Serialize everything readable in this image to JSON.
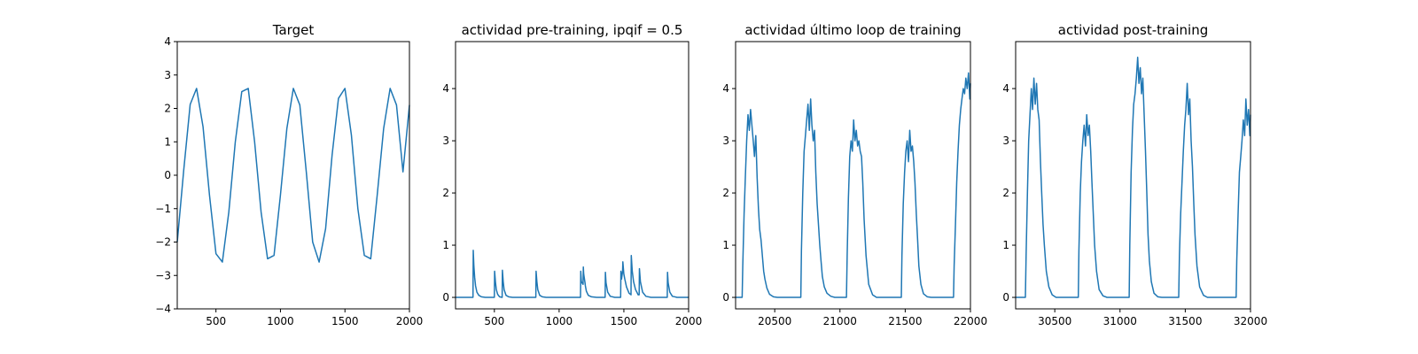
{
  "chart_data": [
    {
      "type": "line",
      "title": "Target",
      "xlabel": "",
      "ylabel": "",
      "xlim": [
        200,
        2000
      ],
      "ylim": [
        -4,
        4
      ],
      "xticks": [
        500,
        1000,
        1500,
        2000
      ],
      "xtick_labels": [
        "500",
        "1000",
        "1500",
        "2000"
      ],
      "yticks": [
        -4,
        -3,
        -2,
        -1,
        0,
        1,
        2,
        3,
        4
      ],
      "ytick_labels": [
        "−4",
        "−3",
        "−2",
        "−1",
        "0",
        "1",
        "2",
        "3",
        "4"
      ],
      "grid": false,
      "color": "#1f77b4",
      "series": [
        {
          "x": [
            200,
            250,
            300,
            350,
            400,
            450,
            500,
            550,
            600,
            650,
            700,
            750,
            800,
            850,
            900,
            950,
            1000,
            1050,
            1100,
            1150,
            1200,
            1250,
            1300,
            1350,
            1400,
            1450,
            1500,
            1550,
            1600,
            1650,
            1700,
            1750,
            1800,
            1850,
            1900,
            1950,
            2000
          ],
          "y": [
            -2.0,
            0.15,
            2.12,
            2.6,
            1.45,
            -0.6,
            -2.35,
            -2.6,
            -1.1,
            1.0,
            2.5,
            2.6,
            1.0,
            -1.1,
            -2.5,
            -2.4,
            -0.6,
            1.4,
            2.6,
            2.1,
            0.1,
            -2.0,
            -2.6,
            -1.6,
            0.6,
            2.3,
            2.6,
            1.2,
            -1.0,
            -2.4,
            -2.5,
            -0.6,
            1.4,
            2.6,
            2.1,
            0.1,
            2.1
          ]
        }
      ]
    },
    {
      "type": "line",
      "title": "actividad pre-training, ipqif = 0.5",
      "xlabel": "",
      "ylabel": "",
      "xlim": [
        200,
        2000
      ],
      "ylim": [
        -0.22,
        4.9
      ],
      "xticks": [
        500,
        1000,
        1500,
        2000
      ],
      "xtick_labels": [
        "500",
        "1000",
        "1500",
        "2000"
      ],
      "yticks": [
        0,
        1,
        2,
        3,
        4
      ],
      "ytick_labels": [
        "0",
        "1",
        "2",
        "3",
        "4"
      ],
      "grid": false,
      "color": "#1f77b4",
      "series": [
        {
          "x": [
            200,
            335,
            337,
            342,
            348,
            355,
            365,
            380,
            400,
            430,
            500,
            502,
            508,
            515,
            525,
            540,
            560,
            562,
            568,
            575,
            590,
            610,
            640,
            820,
            822,
            828,
            835,
            850,
            870,
            900,
            1165,
            1167,
            1172,
            1185,
            1187,
            1190,
            1200,
            1203,
            1210,
            1225,
            1250,
            1290,
            1355,
            1357,
            1362,
            1375,
            1395,
            1430,
            1475,
            1477,
            1482,
            1490,
            1492,
            1500,
            1507,
            1520,
            1540,
            1555,
            1557,
            1565,
            1575,
            1590,
            1600,
            1610,
            1618,
            1620,
            1628,
            1645,
            1670,
            1710,
            1835,
            1837,
            1842,
            1855,
            1875,
            1910,
            2000
          ],
          "y": [
            0,
            0,
            0.9,
            0.6,
            0.38,
            0.22,
            0.1,
            0.04,
            0.01,
            0,
            0,
            0.5,
            0.3,
            0.15,
            0.06,
            0.01,
            0,
            0.52,
            0.3,
            0.15,
            0.04,
            0.01,
            0,
            0,
            0.5,
            0.3,
            0.15,
            0.04,
            0.01,
            0,
            0,
            0.5,
            0.3,
            0.25,
            0.58,
            0.45,
            0.28,
            0.22,
            0.12,
            0.04,
            0.01,
            0,
            0,
            0.48,
            0.28,
            0.1,
            0.02,
            0,
            0,
            0.5,
            0.35,
            0.5,
            0.68,
            0.45,
            0.35,
            0.2,
            0.08,
            0.05,
            0.8,
            0.5,
            0.3,
            0.15,
            0.1,
            0.05,
            0.05,
            0.55,
            0.3,
            0.1,
            0.02,
            0,
            0,
            0.48,
            0.28,
            0.1,
            0.02,
            0,
            0
          ]
        }
      ]
    },
    {
      "type": "line",
      "title": "actividad último loop de training",
      "xlabel": "",
      "ylabel": "",
      "xlim": [
        20200,
        22000
      ],
      "ylim": [
        -0.22,
        4.9
      ],
      "xticks": [
        20500,
        21000,
        21500,
        22000
      ],
      "xtick_labels": [
        "20500",
        "21000",
        "21500",
        "22000"
      ],
      "yticks": [
        0,
        1,
        2,
        3,
        4
      ],
      "ytick_labels": [
        "0",
        "1",
        "2",
        "3",
        "4"
      ],
      "grid": false,
      "color": "#1f77b4",
      "series": [
        {
          "x": [
            20200,
            20250,
            20255,
            20265,
            20275,
            20285,
            20295,
            20305,
            20315,
            20325,
            20335,
            20345,
            20355,
            20365,
            20375,
            20385,
            20395,
            20405,
            20415,
            20425,
            20440,
            20460,
            20490,
            20520,
            20700,
            20705,
            20715,
            20725,
            20735,
            20745,
            20755,
            20765,
            20775,
            20785,
            20795,
            20805,
            20815,
            20825,
            20835,
            20845,
            20855,
            20865,
            20880,
            20900,
            20930,
            20960,
            21050,
            21055,
            21065,
            21075,
            21085,
            21095,
            21105,
            21115,
            21125,
            21135,
            21145,
            21155,
            21165,
            21175,
            21185,
            21200,
            21220,
            21250,
            21280,
            21470,
            21475,
            21485,
            21495,
            21505,
            21515,
            21525,
            21535,
            21545,
            21555,
            21565,
            21575,
            21585,
            21595,
            21605,
            21620,
            21640,
            21670,
            21700,
            21870,
            21875,
            21885,
            21895,
            21905,
            21915,
            21925,
            21935,
            21945,
            21955,
            21965,
            21975,
            21985,
            21995,
            22000
          ],
          "y": [
            0,
            0,
            0.6,
            1.6,
            2.3,
            3.0,
            3.5,
            3.2,
            3.6,
            3.3,
            3.0,
            2.7,
            3.1,
            2.3,
            1.7,
            1.3,
            1.1,
            0.8,
            0.5,
            0.35,
            0.18,
            0.06,
            0.01,
            0,
            0,
            0.9,
            2.0,
            2.8,
            3.1,
            3.4,
            3.7,
            3.2,
            3.8,
            3.3,
            3.0,
            3.2,
            2.4,
            1.8,
            1.4,
            1.0,
            0.7,
            0.4,
            0.2,
            0.08,
            0.02,
            0,
            0,
            0.8,
            1.9,
            2.7,
            3.0,
            2.8,
            3.4,
            3.0,
            3.2,
            2.9,
            3.0,
            2.8,
            2.7,
            2.2,
            1.5,
            0.8,
            0.25,
            0.05,
            0,
            0,
            0.8,
            1.8,
            2.4,
            2.8,
            3.0,
            2.6,
            3.2,
            2.8,
            2.9,
            2.6,
            2.2,
            1.6,
            1.1,
            0.6,
            0.25,
            0.07,
            0.01,
            0,
            0,
            0.6,
            1.4,
            2.2,
            2.8,
            3.3,
            3.6,
            3.8,
            4.0,
            3.9,
            4.2,
            4.0,
            4.3,
            3.8,
            4.1
          ]
        }
      ]
    },
    {
      "type": "line",
      "title": "actividad post-training",
      "xlabel": "",
      "ylabel": "",
      "xlim": [
        30200,
        32000
      ],
      "ylim": [
        -0.22,
        4.9
      ],
      "xticks": [
        30500,
        31000,
        31500,
        32000
      ],
      "xtick_labels": [
        "30500",
        "31000",
        "31500",
        "32000"
      ],
      "yticks": [
        0,
        1,
        2,
        3,
        4
      ],
      "ytick_labels": [
        "0",
        "1",
        "2",
        "3",
        "4"
      ],
      "grid": false,
      "color": "#1f77b4",
      "series": [
        {
          "x": [
            30200,
            30275,
            30280,
            30290,
            30300,
            30310,
            30320,
            30330,
            30340,
            30350,
            30360,
            30370,
            30380,
            30390,
            30400,
            30410,
            30420,
            30435,
            30455,
            30480,
            30510,
            30680,
            30685,
            30695,
            30705,
            30715,
            30725,
            30735,
            30745,
            30755,
            30765,
            30775,
            30785,
            30795,
            30805,
            30820,
            30840,
            30870,
            30900,
            31070,
            31075,
            31085,
            31095,
            31105,
            31115,
            31125,
            31135,
            31145,
            31155,
            31165,
            31175,
            31185,
            31195,
            31205,
            31215,
            31225,
            31240,
            31260,
            31290,
            31320,
            31450,
            31455,
            31465,
            31475,
            31485,
            31495,
            31505,
            31515,
            31525,
            31535,
            31545,
            31555,
            31565,
            31575,
            31590,
            31610,
            31640,
            31670,
            31890,
            31895,
            31905,
            31915,
            31925,
            31935,
            31945,
            31955,
            31965,
            31975,
            31985,
            31995,
            32000
          ],
          "y": [
            0,
            0,
            0.8,
            2.0,
            3.0,
            3.5,
            4.0,
            3.6,
            4.2,
            3.7,
            4.1,
            3.6,
            3.4,
            2.6,
            2.0,
            1.4,
            1.0,
            0.5,
            0.2,
            0.05,
            0,
            0,
            0.9,
            2.0,
            2.6,
            3.0,
            3.3,
            2.9,
            3.5,
            3.1,
            3.3,
            2.8,
            2.2,
            1.6,
            1.0,
            0.5,
            0.15,
            0.03,
            0,
            0,
            1.0,
            2.4,
            3.2,
            3.7,
            3.9,
            4.2,
            4.6,
            4.1,
            4.4,
            3.9,
            4.2,
            3.5,
            2.8,
            2.0,
            1.2,
            0.7,
            0.3,
            0.08,
            0.01,
            0,
            0,
            0.8,
            1.6,
            2.2,
            2.8,
            3.3,
            3.6,
            4.1,
            3.5,
            3.8,
            3.0,
            2.5,
            1.8,
            1.2,
            0.6,
            0.2,
            0.04,
            0,
            0,
            0.7,
            1.6,
            2.4,
            2.7,
            3.0,
            3.4,
            3.1,
            3.8,
            3.3,
            3.6,
            3.1,
            3.5
          ]
        }
      ]
    }
  ]
}
